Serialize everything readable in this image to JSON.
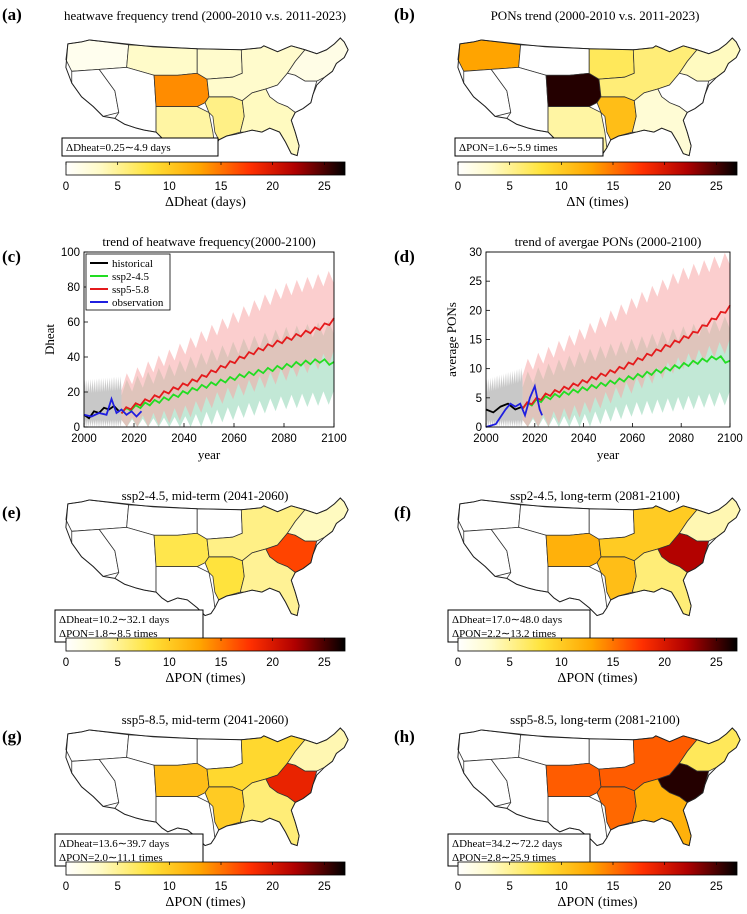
{
  "chart_data": [
    {
      "panel": "(a)",
      "type": "map",
      "title": "heatwave frequency trend (2000-2010 v.s. 2011-2023)",
      "annotation": [
        "ΔDheat=0.25∼4.9 days"
      ],
      "colorbar": {
        "label": "ΔDheat (days)",
        "ticks": [
          "0",
          "5",
          "10",
          "15",
          "20",
          "25"
        ],
        "range": [
          0,
          27
        ]
      },
      "regions": {
        "nw": 1.0,
        "wnc": 3.2,
        "ohio": 3.0,
        "ne": 1.5,
        "swest": 0,
        "south": 14,
        "sw": 4.5,
        "west": 0,
        "ern": 0,
        "ser": 3.5,
        "cen_s": 5.5,
        "cen_w": 3.0
      }
    },
    {
      "panel": "(b)",
      "type": "map",
      "title": "PONs trend (2000-2010 v.s. 2011-2023)",
      "annotation": [
        "ΔPON=1.6∼5.9 times"
      ],
      "colorbar": {
        "label": "ΔN (times)",
        "ticks": [
          "0",
          "5",
          "10",
          "15",
          "20",
          "25"
        ],
        "range": [
          0,
          27
        ]
      },
      "regions": {
        "nw": 13,
        "wnc": 0,
        "ohio": 6,
        "ne": 3.5,
        "swest": 0,
        "south": 26,
        "sw": 4.5,
        "west": 0,
        "ern": 0,
        "ser": 2.5,
        "cen_s": 11,
        "cen_w": 7
      }
    },
    {
      "panel": "(c)",
      "type": "line",
      "title": "trend of heatwave frequency(2000-2100)",
      "xlabel": "year",
      "ylabel": "Dheat",
      "xlim": [
        2000,
        2100
      ],
      "ylim": [
        0,
        100
      ],
      "xticks": [
        2000,
        2020,
        2040,
        2060,
        2080,
        2100
      ],
      "yticks": [
        0,
        20,
        40,
        60,
        80,
        100
      ],
      "legend": [
        "historical",
        "ssp2-4.5",
        "ssp5-5.8",
        "observation"
      ],
      "series": [
        {
          "name": "historical",
          "color": "#000000",
          "x": [
            2000,
            2002,
            2004,
            2006,
            2008,
            2010,
            2012,
            2014
          ],
          "y": [
            7,
            5,
            9,
            8,
            11,
            10,
            12,
            9
          ]
        },
        {
          "name": "ssp2-4.5",
          "color": "#22dd22",
          "x": [
            2015,
            2025,
            2035,
            2045,
            2055,
            2065,
            2075,
            2085,
            2095,
            2100
          ],
          "y": [
            9,
            13,
            17,
            22,
            26,
            30,
            33,
            36,
            38,
            36
          ]
        },
        {
          "name": "ssp5-5.8",
          "color": "#e41a1c",
          "x": [
            2015,
            2025,
            2035,
            2045,
            2055,
            2065,
            2075,
            2085,
            2095,
            2100
          ],
          "y": [
            9,
            15,
            21,
            27,
            34,
            41,
            47,
            52,
            57,
            61
          ]
        },
        {
          "name": "observation",
          "color": "#1f1fe0",
          "x": [
            2000,
            2003,
            2006,
            2009,
            2011,
            2013,
            2015,
            2017,
            2019,
            2021,
            2023
          ],
          "y": [
            7,
            6,
            8,
            7,
            16,
            8,
            10,
            7,
            9,
            6,
            9
          ]
        }
      ],
      "bands": [
        {
          "color": "#9a9a9a",
          "x": [
            2000,
            2015
          ],
          "lo": [
            0,
            0
          ],
          "hi": [
            23,
            25
          ]
        },
        {
          "color": "#8fd6b5",
          "x": [
            2015,
            2040,
            2060,
            2080,
            2100
          ],
          "lo": [
            0,
            2,
            8,
            14,
            17
          ],
          "hi": [
            22,
            35,
            45,
            53,
            57
          ]
        },
        {
          "color": "#f7a5a5",
          "x": [
            2015,
            2040,
            2060,
            2080,
            2100
          ],
          "lo": [
            0,
            8,
            20,
            30,
            40
          ],
          "hi": [
            25,
            45,
            62,
            78,
            86
          ]
        }
      ]
    },
    {
      "panel": "(d)",
      "type": "line",
      "title": "trend of avergae PONs (2000-2100)",
      "xlabel": "year",
      "ylabel": "average PONs",
      "xlim": [
        2000,
        2100
      ],
      "ylim": [
        0,
        30
      ],
      "xticks": [
        2000,
        2020,
        2040,
        2060,
        2080,
        2100
      ],
      "yticks": [
        0,
        5,
        10,
        15,
        20,
        25,
        30
      ],
      "series": [
        {
          "name": "historical",
          "color": "#000000",
          "x": [
            2000,
            2003,
            2006,
            2009,
            2012,
            2015
          ],
          "y": [
            3,
            2.5,
            3.5,
            4,
            3,
            3.5
          ]
        },
        {
          "name": "ssp2-4.5",
          "color": "#22dd22",
          "x": [
            2015,
            2025,
            2035,
            2045,
            2055,
            2065,
            2075,
            2085,
            2095,
            2100
          ],
          "y": [
            3.5,
            5,
            6,
            7,
            8,
            9,
            10,
            11,
            12,
            11
          ]
        },
        {
          "name": "ssp5-5.8",
          "color": "#e41a1c",
          "x": [
            2015,
            2025,
            2035,
            2045,
            2055,
            2065,
            2075,
            2085,
            2095,
            2100
          ],
          "y": [
            3.5,
            5.5,
            7,
            8.5,
            10,
            12,
            14,
            16,
            19,
            20.5
          ]
        },
        {
          "name": "observation",
          "color": "#1f1fe0",
          "x": [
            2000,
            2004,
            2008,
            2010,
            2012,
            2014,
            2016,
            2018,
            2020,
            2022,
            2023
          ],
          "y": [
            0,
            0.5,
            3,
            4,
            3.5,
            4,
            2,
            5,
            7,
            3,
            2
          ]
        }
      ],
      "bands": [
        {
          "color": "#9a9a9a",
          "x": [
            2000,
            2015
          ],
          "lo": [
            0,
            0
          ],
          "hi": [
            7,
            9
          ]
        },
        {
          "color": "#8fd6b5",
          "x": [
            2015,
            2040,
            2060,
            2080,
            2100
          ],
          "lo": [
            0,
            1,
            3,
            4,
            5
          ],
          "hi": [
            8,
            12,
            14,
            16,
            18
          ]
        },
        {
          "color": "#f7a5a5",
          "x": [
            2015,
            2040,
            2060,
            2080,
            2100
          ],
          "lo": [
            0,
            3,
            7,
            11,
            14
          ],
          "hi": [
            10,
            16,
            21,
            26,
            29
          ]
        }
      ]
    },
    {
      "panel": "(e)",
      "type": "map",
      "title": "ssp2-4.5, mid-term (2041-2060)",
      "annotation": [
        "ΔDheat=10.2∼32.1 days",
        "ΔPON=1.8∼8.5 times"
      ],
      "colorbar": {
        "label": "ΔPON (times)",
        "ticks": [
          "0",
          "5",
          "10",
          "15",
          "20",
          "25"
        ],
        "range": [
          0,
          27
        ]
      },
      "regions": {
        "ohio": 5.5,
        "ne": 3.5,
        "south": 7.5,
        "ser": 5,
        "cen_s": 8,
        "carolina": 17
      }
    },
    {
      "panel": "(f)",
      "type": "map",
      "title": "ssp2-4.5, long-term (2081-2100)",
      "annotation": [
        "ΔDheat=17.0∼48.0 days",
        "ΔPON=2.2∼13.2 times"
      ],
      "colorbar": {
        "label": "ΔPON (times)",
        "ticks": [
          "0",
          "5",
          "10",
          "15",
          "20",
          "25"
        ],
        "range": [
          0,
          27
        ]
      },
      "regions": {
        "ohio": 10,
        "ne": 4,
        "south": 12,
        "ser": 6,
        "cen_s": 11,
        "carolina": 22
      }
    },
    {
      "panel": "(g)",
      "type": "map",
      "title": "ssp5-8.5, mid-term (2041-2060)",
      "annotation": [
        "ΔDheat=13.6∼39.7 days",
        "ΔPON=2.0∼11.1 times"
      ],
      "colorbar": {
        "label": "ΔPON (times)",
        "ticks": [
          "0",
          "5",
          "10",
          "15",
          "20",
          "25"
        ],
        "range": [
          0,
          27
        ]
      },
      "regions": {
        "ohio": 9,
        "ne": 4,
        "south": 11,
        "ser": 6,
        "cen_s": 10,
        "carolina": 19
      }
    },
    {
      "panel": "(h)",
      "type": "map",
      "title": "ssp5-8.5, long-term (2081-2100)",
      "annotation": [
        "ΔDheat=34.2∼72.2 days",
        "ΔPON=2.8∼25.9 times"
      ],
      "colorbar": {
        "label": "ΔPON (times)",
        "ticks": [
          "0",
          "5",
          "10",
          "15",
          "20",
          "25"
        ],
        "range": [
          0,
          27
        ]
      },
      "regions": {
        "ohio": 16,
        "ne": 7,
        "south": 16,
        "ser": 12,
        "cen_s": 15.5,
        "carolina": 26
      }
    }
  ]
}
